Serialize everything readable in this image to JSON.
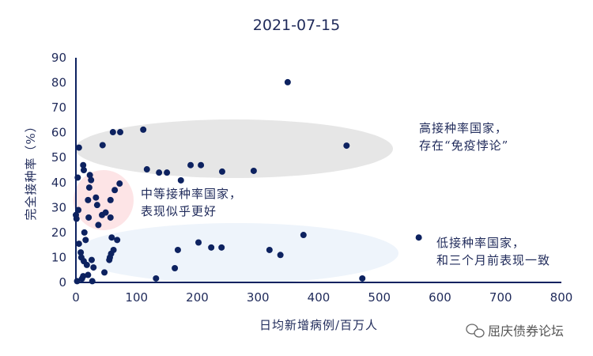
{
  "chart_data": {
    "type": "scatter",
    "title": "2021-07-15",
    "xlabel": "日均新增病例/百万人",
    "ylabel": "完全接种率（%）",
    "xlim": [
      0,
      800
    ],
    "ylim": [
      0,
      90
    ],
    "xticks": [
      "0",
      "100",
      "200",
      "300",
      "400",
      "500",
      "600",
      "700",
      "800"
    ],
    "yticks": [
      "0",
      "10",
      "20",
      "30",
      "40",
      "50",
      "60",
      "70",
      "80",
      "90"
    ],
    "grid": false,
    "point_color": "#0d2260",
    "axis_color": "#0d2260",
    "points": [
      [
        349,
        80.2
      ],
      [
        446,
        54.8
      ],
      [
        111,
        61.2
      ],
      [
        61,
        60.2
      ],
      [
        73,
        60.2
      ],
      [
        44,
        55
      ],
      [
        5,
        54
      ],
      [
        117,
        45.3
      ],
      [
        137,
        44
      ],
      [
        150,
        44
      ],
      [
        173,
        40.9
      ],
      [
        189,
        47
      ],
      [
        206,
        47
      ],
      [
        241,
        44.4
      ],
      [
        293,
        44.7
      ],
      [
        12,
        47
      ],
      [
        13,
        45
      ],
      [
        23,
        43
      ],
      [
        25,
        41
      ],
      [
        3,
        42
      ],
      [
        72,
        39.6
      ],
      [
        64,
        37
      ],
      [
        22,
        38
      ],
      [
        33,
        34
      ],
      [
        57,
        33
      ],
      [
        20,
        33
      ],
      [
        4,
        29
      ],
      [
        0,
        27
      ],
      [
        1,
        25.5
      ],
      [
        43,
        27
      ],
      [
        49,
        28
      ],
      [
        57,
        26
      ],
      [
        35,
        31
      ],
      [
        37,
        23
      ],
      [
        21,
        26
      ],
      [
        14,
        20
      ],
      [
        59,
        18
      ],
      [
        68,
        17
      ],
      [
        5,
        15.5
      ],
      [
        16,
        17
      ],
      [
        375,
        19
      ],
      [
        565,
        18
      ],
      [
        202,
        16
      ],
      [
        223,
        14
      ],
      [
        240,
        14
      ],
      [
        168,
        13
      ],
      [
        319,
        13
      ],
      [
        337,
        11
      ],
      [
        62,
        13
      ],
      [
        58,
        11.5
      ],
      [
        56,
        10
      ],
      [
        55,
        9
      ],
      [
        8,
        12
      ],
      [
        9,
        10
      ],
      [
        13,
        8.5
      ],
      [
        18,
        7
      ],
      [
        26,
        9
      ],
      [
        29,
        6
      ],
      [
        47,
        4
      ],
      [
        163,
        5.7
      ],
      [
        132,
        1.6
      ],
      [
        472,
        1.6
      ],
      [
        2,
        0.5
      ],
      [
        10,
        1.5
      ],
      [
        27,
        0.5
      ],
      [
        12,
        2.5
      ],
      [
        20,
        3
      ]
    ],
    "annotations": [
      {
        "lines": [
          "高接种率国家，",
          "存在“免疫悖论”"
        ],
        "region_color": "#e6e6e6"
      },
      {
        "lines": [
          "中等接种率国家，",
          "表现似乎更好"
        ],
        "region_color": "#fde4e6"
      },
      {
        "lines": [
          "低接种率国家，",
          "和三个月前表现一致"
        ],
        "region_color": "#eef4fb"
      }
    ]
  },
  "watermark": "屈庆债券论坛"
}
